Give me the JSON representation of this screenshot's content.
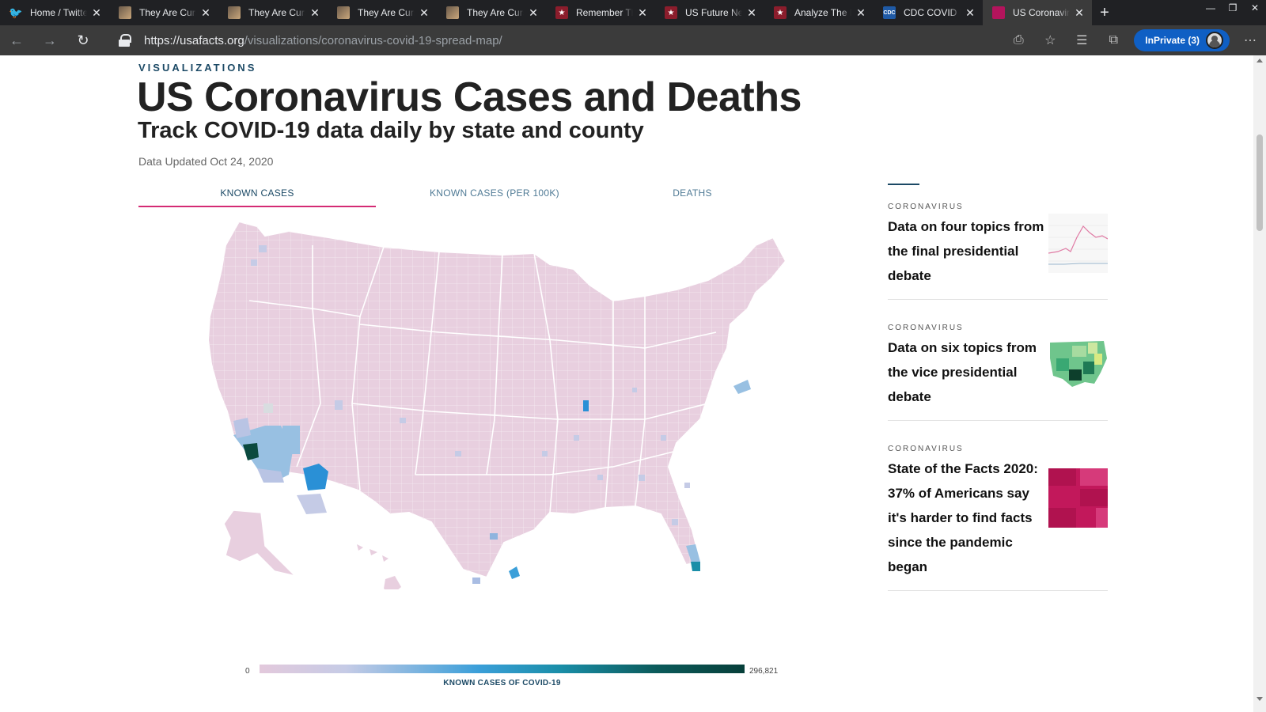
{
  "browser": {
    "tabs": [
      {
        "label": "Home / Twitter",
        "icon": "twitter-icon",
        "active": false
      },
      {
        "label": "They Are Cursed",
        "icon": "photo-icon",
        "active": false
      },
      {
        "label": "They Are Cursed",
        "icon": "photo-icon",
        "active": false
      },
      {
        "label": "They Are Cursed",
        "icon": "photo-icon",
        "active": false
      },
      {
        "label": "They Are Cursed",
        "icon": "photo-icon",
        "active": false
      },
      {
        "label": "Remember The",
        "icon": "star-icon",
        "active": false
      },
      {
        "label": "US Future News",
        "icon": "star-icon",
        "active": false
      },
      {
        "label": "Analyze The Data",
        "icon": "star-icon",
        "active": false
      },
      {
        "label": "CDC COVID Data",
        "icon": "cdc-icon",
        "active": false
      },
      {
        "label": "US Coronavirus",
        "icon": "usafacts-icon",
        "active": true
      }
    ],
    "url_host": "https://usafacts.org",
    "url_path": "/visualizations/coronavirus-covid-19-spread-map/",
    "inprivate_label": "InPrivate (3)"
  },
  "page": {
    "eyebrow": "VISUALIZATIONS",
    "title": "US Coronavirus Cases and Deaths",
    "subtitle": "Track COVID-19 data daily by state and county",
    "updated": "Data Updated Oct 24, 2020",
    "tabs": [
      {
        "label": "KNOWN CASES",
        "active": true
      },
      {
        "label": "KNOWN CASES (PER 100K)",
        "active": false
      },
      {
        "label": "DEATHS",
        "active": false
      }
    ],
    "legend": {
      "min": "0",
      "max": "296,821",
      "title": "KNOWN CASES OF COVID-19"
    },
    "colors": {
      "brand_navy": "#1b4965",
      "accent_magenta": "#d42b74",
      "map_base": "#e8cfdf",
      "map_low": "#c5cbe6",
      "map_mid": "#3b9fd9",
      "map_high": "#073f3a"
    }
  },
  "sidebar": {
    "cards": [
      {
        "category": "CORONAVIRUS",
        "title": "Data on four topics from the final presidential debate",
        "thumb": "line-chart-thumbnail"
      },
      {
        "category": "CORONAVIRUS",
        "title": "Data on six topics from the vice presidential debate",
        "thumb": "green-us-map-thumbnail"
      },
      {
        "category": "CORONAVIRUS",
        "title": "State of the Facts 2020: 37% of Americans say it's harder to find facts since the pandemic began",
        "thumb": "magenta-grid-thumbnail"
      }
    ]
  }
}
